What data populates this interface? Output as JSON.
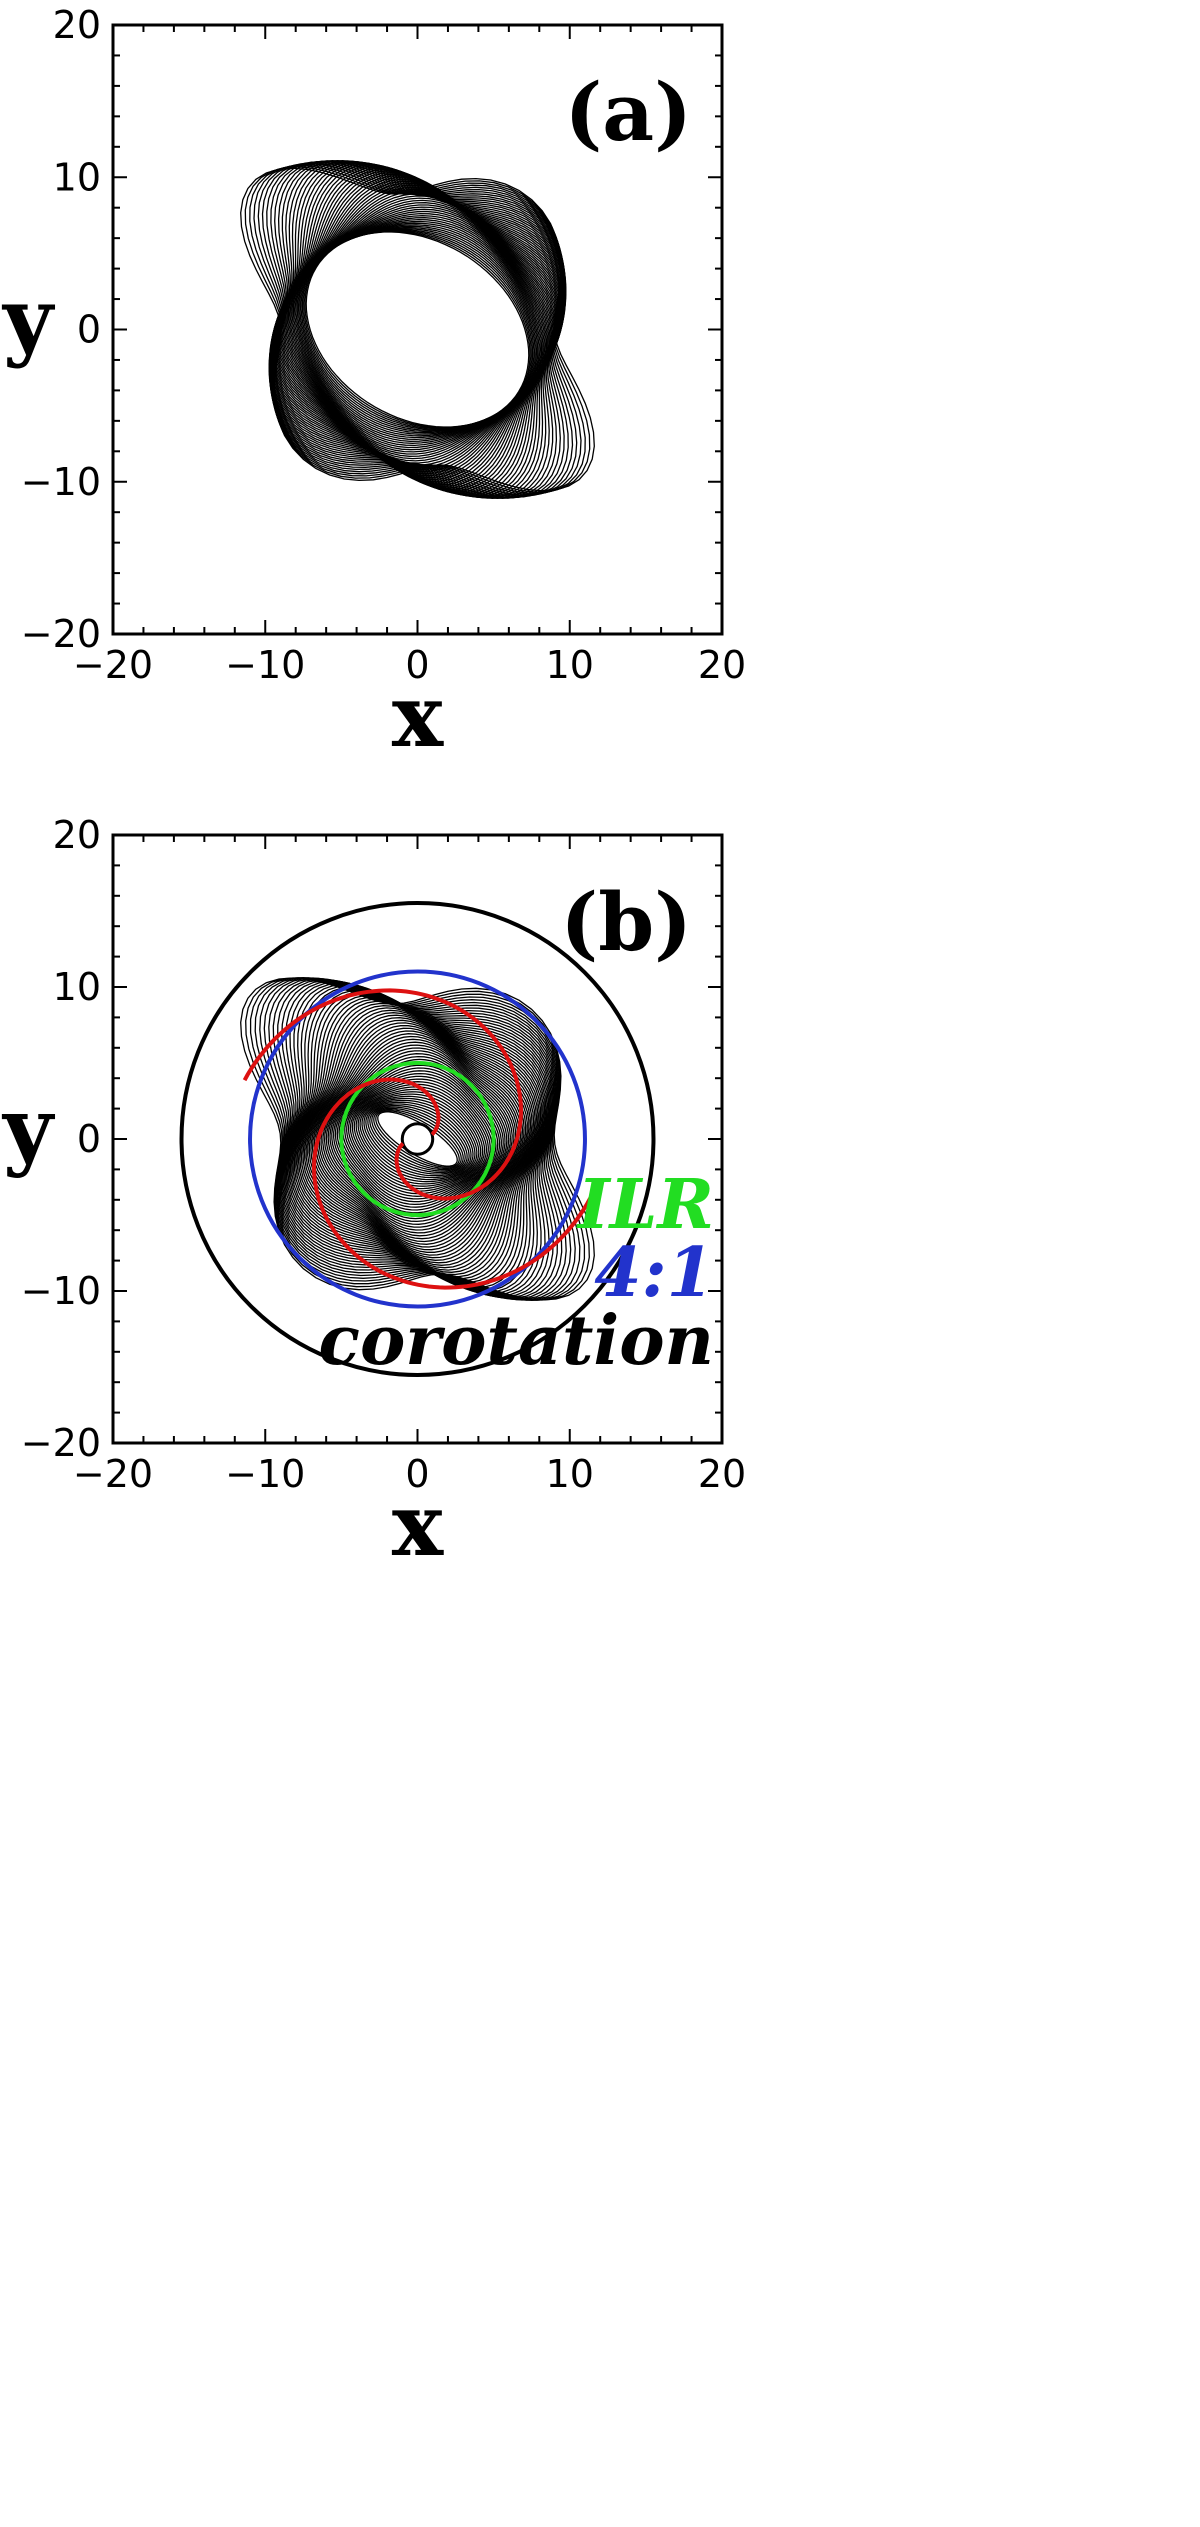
{
  "chart_data": [
    {
      "type": "line",
      "panel_label": "(a)",
      "xlabel": "x",
      "ylabel": "y",
      "xlim": [
        -20,
        20
      ],
      "ylim": [
        -20,
        20
      ],
      "xticks": [
        -20,
        -10,
        0,
        10,
        20
      ],
      "yticks": [
        -20,
        -10,
        0,
        10,
        20
      ],
      "xtick_labels": [
        "−20",
        "−10",
        "0",
        "10",
        "20"
      ],
      "ytick_labels": [
        "−20",
        "−10",
        "0",
        "10",
        "20"
      ],
      "grid": false,
      "series": [
        {
          "kind": "rosette-orbit",
          "color": "#000000",
          "inner_radius": 5.8,
          "outer_extent": 12.3,
          "loops": 60
        }
      ]
    },
    {
      "type": "line",
      "panel_label": "(b)",
      "xlabel": "x",
      "ylabel": "y",
      "xlim": [
        -20,
        20
      ],
      "ylim": [
        -20,
        20
      ],
      "xticks": [
        -20,
        -10,
        0,
        10,
        20
      ],
      "yticks": [
        -20,
        -10,
        0,
        10,
        20
      ],
      "xtick_labels": [
        "−20",
        "−10",
        "0",
        "10",
        "20"
      ],
      "ytick_labels": [
        "−20",
        "−10",
        "0",
        "10",
        "20"
      ],
      "grid": false,
      "series": [
        {
          "kind": "rosette-orbit",
          "color": "#000000",
          "inner_radius": 1.0,
          "outer_extent": 12.3,
          "loops": 70
        },
        {
          "name": "ILR",
          "kind": "circle",
          "radius": 5.0,
          "color": "#22dd22"
        },
        {
          "name": "4:1",
          "kind": "circle",
          "radius": 11.0,
          "color": "#2233cc"
        },
        {
          "name": "corotation",
          "kind": "circle",
          "radius": 15.5,
          "color": "#000000"
        },
        {
          "kind": "spiral-arms",
          "color": "#dd1111",
          "arms": 2,
          "r_start": 1.0,
          "r_end": 12.0
        }
      ],
      "legend": {
        "placement": "bottom-right",
        "entries": [
          "ILR",
          "4:1",
          "corotation"
        ]
      }
    }
  ]
}
